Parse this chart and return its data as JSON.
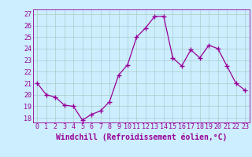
{
  "x": [
    0,
    1,
    2,
    3,
    4,
    5,
    6,
    7,
    8,
    9,
    10,
    11,
    12,
    13,
    14,
    15,
    16,
    17,
    18,
    19,
    20,
    21,
    22,
    23
  ],
  "y": [
    21.0,
    20.0,
    19.8,
    19.1,
    19.0,
    17.8,
    18.3,
    18.6,
    19.4,
    21.7,
    22.6,
    25.0,
    25.8,
    26.8,
    26.8,
    23.2,
    22.5,
    23.9,
    23.2,
    24.3,
    24.0,
    22.5,
    21.0,
    20.4
  ],
  "line_color": "#990099",
  "marker": "+",
  "marker_size": 4,
  "marker_linewidth": 1.0,
  "line_width": 0.9,
  "bg_color": "#cceeff",
  "grid_color": "#aacccc",
  "ylabel_ticks": [
    18,
    19,
    20,
    21,
    22,
    23,
    24,
    25,
    26,
    27
  ],
  "xtick_labels": [
    "0",
    "1",
    "2",
    "3",
    "4",
    "5",
    "6",
    "7",
    "8",
    "9",
    "10",
    "11",
    "12",
    "13",
    "14",
    "15",
    "16",
    "17",
    "18",
    "19",
    "20",
    "21",
    "22",
    "23"
  ],
  "ylim": [
    17.6,
    27.4
  ],
  "xlim": [
    -0.5,
    23.5
  ],
  "xlabel": "Windchill (Refroidissement éolien,°C)",
  "xlabel_fontsize": 7,
  "tick_fontsize": 6,
  "axis_label_color": "#990099",
  "tick_color": "#990099",
  "spine_color": "#990099"
}
